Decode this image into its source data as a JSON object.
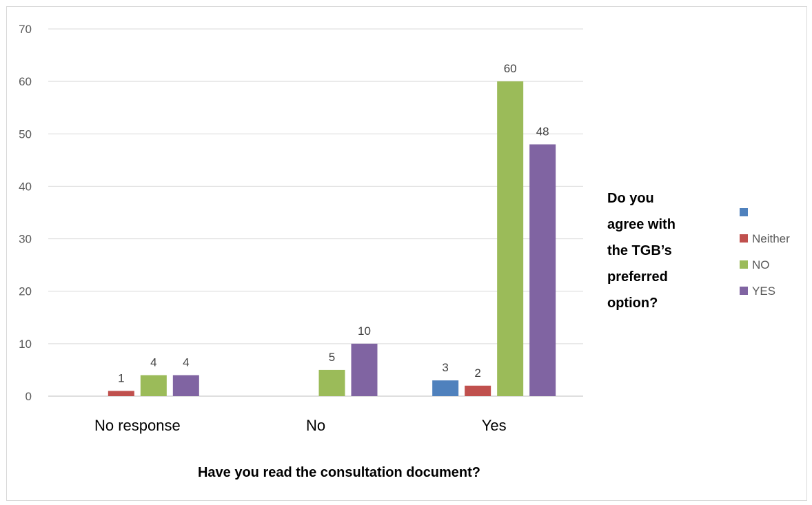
{
  "chart_data": {
    "type": "bar",
    "categories": [
      "No response",
      "No",
      "Yes"
    ],
    "series": [
      {
        "name": "",
        "color": "#4f81bd",
        "values": [
          null,
          null,
          3
        ]
      },
      {
        "name": "Neither",
        "color": "#c0504d",
        "values": [
          1,
          null,
          2
        ]
      },
      {
        "name": "NO",
        "color": "#9bbb59",
        "values": [
          4,
          5,
          60
        ]
      },
      {
        "name": "YES",
        "color": "#8064a2",
        "values": [
          4,
          10,
          48
        ]
      }
    ],
    "xlabel": "Have you read the consultation document?",
    "legend_title": [
      "Do you",
      "agree with",
      "the TGB’s",
      "preferred",
      "option?"
    ],
    "ylim": [
      0,
      70
    ],
    "yticks": [
      0,
      10,
      20,
      30,
      40,
      50,
      60,
      70
    ],
    "grid": true,
    "legend_position": "right"
  }
}
